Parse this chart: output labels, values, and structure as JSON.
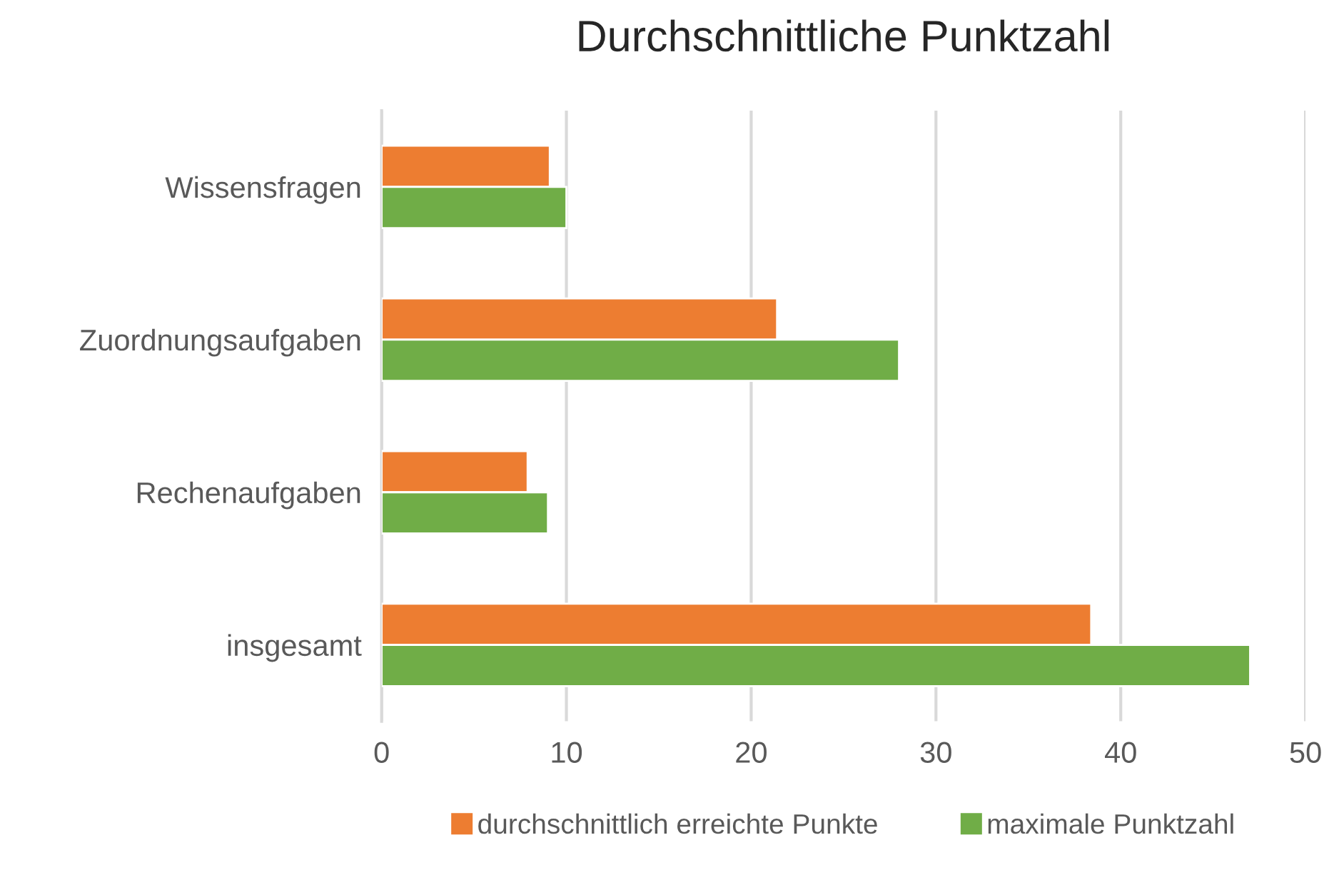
{
  "chart_data": {
    "type": "bar",
    "orientation": "horizontal",
    "title": "Durchschnittliche Punktzahl",
    "categories": [
      "Wissensfragen",
      "Zuordnungsaufgaben",
      "Rechenaufgaben",
      "insgesamt"
    ],
    "series": [
      {
        "name": "durchschnittlich erreichte Punkte",
        "color": "#ed7d31",
        "values": [
          9.1,
          21.4,
          7.9,
          38.4
        ]
      },
      {
        "name": "maximale Punktzahl",
        "color": "#70ad47",
        "values": [
          10.0,
          28.0,
          9.0,
          47.0
        ]
      }
    ],
    "xlim": [
      0,
      50
    ],
    "xticks": [
      0,
      10,
      20,
      30,
      40,
      50
    ],
    "grid": "x",
    "legend": "bottom"
  }
}
